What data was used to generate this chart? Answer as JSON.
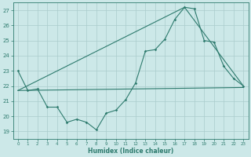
{
  "xlabel": "Humidex (Indice chaleur)",
  "bg_color": "#cce8e8",
  "grid_color": "#aacccc",
  "line_color": "#2e7b6e",
  "xlim": [
    -0.5,
    23.5
  ],
  "ylim": [
    18.5,
    27.5
  ],
  "yticks": [
    19,
    20,
    21,
    22,
    23,
    24,
    25,
    26,
    27
  ],
  "xticks": [
    0,
    1,
    2,
    3,
    4,
    5,
    6,
    7,
    8,
    9,
    10,
    11,
    12,
    13,
    14,
    15,
    16,
    17,
    18,
    19,
    20,
    21,
    22,
    23
  ],
  "line1_x": [
    0,
    1,
    2,
    3,
    4,
    5,
    6,
    7,
    8,
    9,
    10,
    11,
    12,
    13,
    14,
    15,
    16,
    17,
    18,
    19,
    20,
    21,
    22,
    23
  ],
  "line1_y": [
    23.0,
    21.7,
    21.8,
    20.6,
    20.6,
    19.6,
    19.8,
    19.6,
    19.1,
    20.2,
    20.4,
    21.1,
    22.2,
    24.3,
    24.4,
    25.1,
    26.4,
    27.2,
    27.1,
    25.0,
    24.9,
    23.3,
    22.5,
    22.0
  ],
  "line2_x": [
    0,
    23
  ],
  "line2_y": [
    21.7,
    21.9
  ],
  "line3_x": [
    0,
    17,
    23
  ],
  "line3_y": [
    21.7,
    27.2,
    22.0
  ]
}
